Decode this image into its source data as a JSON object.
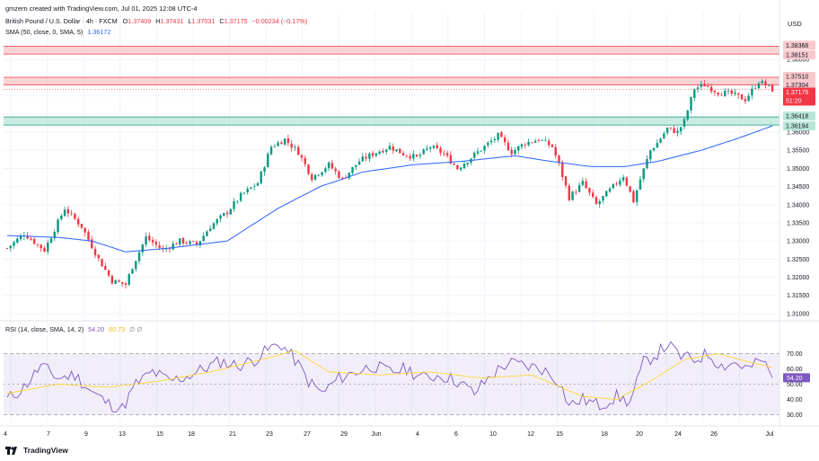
{
  "watermark": "gmzern created with TradingView.com, Jul 01, 2025 12:08 UTC-4",
  "legend_main": {
    "symbol": "British Pound / U.S. Dollar · 4h · FXCM",
    "o_label": "O",
    "o": "1.37409",
    "h_label": "H",
    "h": "1.37431",
    "l_label": "L",
    "l": "1.37031",
    "c_label": "C",
    "c": "1.37175",
    "change": "−0.00234 (−0.17%)"
  },
  "legend_sma": {
    "label": "SMA (50, close, 0, SMA, 5)",
    "value": "1.36172"
  },
  "legend_rsi": {
    "label": "RSI (14, close, SMA, 14, 2)",
    "value1": "54.20",
    "value2": "60.73",
    "extra": "∅ ∅"
  },
  "currency": "USD",
  "brand": "TradingView",
  "colors": {
    "up": "#089981",
    "down": "#f23645",
    "sma": "#2962ff",
    "rsi": "#7e57c2",
    "rsi_ma": "#fdd835",
    "grid": "#f0f3fa",
    "red_zone": "#f7c6ca",
    "green_zone": "#b9e6d9",
    "last_price_bg": "#f23645"
  },
  "price_axis": {
    "ticks": [
      "1.38000",
      "1.37500",
      "1.37000",
      "1.36500",
      "1.36000",
      "1.35500",
      "1.35000",
      "1.34500",
      "1.34000",
      "1.33500",
      "1.33000",
      "1.32500",
      "1.32000",
      "1.31500",
      "1.31000"
    ],
    "badges_red": [
      "1.38368",
      "1.38151",
      "1.37510",
      "1.37304"
    ],
    "last_price": "1.37175",
    "countdown": "51:20",
    "badges_green": [
      "1.36418",
      "1.36194"
    ]
  },
  "rsi_axis": {
    "ticks": [
      "70.00",
      "60.00",
      "50.00",
      "40.00",
      "30.00"
    ]
  },
  "time_axis": [
    "4",
    "7",
    "9",
    "13",
    "15",
    "18",
    "21",
    "23",
    "27",
    "29",
    "Jun",
    "4",
    "6",
    "10",
    "12",
    "15",
    "18",
    "20",
    "24",
    "26",
    "Jul"
  ],
  "chart_data": {
    "type": "candlestick",
    "symbol": "GBPUSD",
    "timeframe": "4h",
    "ylim": [
      1.3085,
      1.3855
    ],
    "zones": [
      {
        "type": "resistance",
        "from": 1.38151,
        "to": 1.38368
      },
      {
        "type": "resistance",
        "from": 1.37304,
        "to": 1.3751
      },
      {
        "type": "support",
        "from": 1.36194,
        "to": 1.36418
      }
    ],
    "close_path_points": [
      [
        0,
        1.328
      ],
      [
        10,
        1.332
      ],
      [
        22,
        1.3275
      ],
      [
        34,
        1.339
      ],
      [
        44,
        1.334
      ],
      [
        54,
        1.325
      ],
      [
        62,
        1.319
      ],
      [
        70,
        1.318
      ],
      [
        74,
        1.323
      ],
      [
        82,
        1.331
      ],
      [
        92,
        1.3275
      ],
      [
        102,
        1.33
      ],
      [
        112,
        1.329
      ],
      [
        120,
        1.334
      ],
      [
        130,
        1.338
      ],
      [
        138,
        1.3425
      ],
      [
        148,
        1.346
      ],
      [
        156,
        1.356
      ],
      [
        164,
        1.358
      ],
      [
        172,
        1.3545
      ],
      [
        180,
        1.3475
      ],
      [
        190,
        1.351
      ],
      [
        198,
        1.347
      ],
      [
        208,
        1.352
      ],
      [
        216,
        1.354
      ],
      [
        226,
        1.356
      ],
      [
        234,
        1.354
      ],
      [
        242,
        1.353
      ],
      [
        250,
        1.356
      ],
      [
        258,
        1.354
      ],
      [
        266,
        1.35
      ],
      [
        274,
        1.353
      ],
      [
        282,
        1.356
      ],
      [
        290,
        1.359
      ],
      [
        298,
        1.3545
      ],
      [
        306,
        1.357
      ],
      [
        314,
        1.358
      ],
      [
        322,
        1.356
      ],
      [
        326,
        1.351
      ],
      [
        332,
        1.342
      ],
      [
        340,
        1.346
      ],
      [
        348,
        1.34
      ],
      [
        356,
        1.344
      ],
      [
        364,
        1.348
      ],
      [
        370,
        1.341
      ],
      [
        374,
        1.347
      ],
      [
        380,
        1.355
      ],
      [
        384,
        1.357
      ],
      [
        390,
        1.361
      ],
      [
        396,
        1.36
      ],
      [
        400,
        1.363
      ],
      [
        406,
        1.372
      ],
      [
        412,
        1.373
      ],
      [
        420,
        1.371
      ],
      [
        428,
        1.3705
      ],
      [
        436,
        1.369
      ],
      [
        444,
        1.374
      ],
      [
        448,
        1.373
      ],
      [
        452,
        1.3717
      ]
    ],
    "sma50_points": [
      [
        0,
        1.3315
      ],
      [
        30,
        1.331
      ],
      [
        50,
        1.33
      ],
      [
        70,
        1.327
      ],
      [
        95,
        1.328
      ],
      [
        130,
        1.33
      ],
      [
        160,
        1.339
      ],
      [
        185,
        1.345
      ],
      [
        210,
        1.349
      ],
      [
        240,
        1.351
      ],
      [
        270,
        1.352
      ],
      [
        300,
        1.3535
      ],
      [
        320,
        1.352
      ],
      [
        345,
        1.3505
      ],
      [
        365,
        1.3505
      ],
      [
        385,
        1.352
      ],
      [
        410,
        1.355
      ],
      [
        430,
        1.358
      ],
      [
        452,
        1.3617
      ]
    ],
    "rsi": {
      "ylim": [
        25,
        85
      ],
      "bands": [
        30,
        50,
        70
      ],
      "last": 54.2,
      "ma_last": 60.73,
      "points": [
        [
          0,
          40
        ],
        [
          10,
          48
        ],
        [
          20,
          62
        ],
        [
          30,
          54
        ],
        [
          40,
          56
        ],
        [
          50,
          45
        ],
        [
          60,
          37
        ],
        [
          68,
          34
        ],
        [
          76,
          50
        ],
        [
          86,
          58
        ],
        [
          96,
          52
        ],
        [
          106,
          55
        ],
        [
          116,
          60
        ],
        [
          126,
          65
        ],
        [
          136,
          62
        ],
        [
          146,
          66
        ],
        [
          156,
          74
        ],
        [
          162,
          76
        ],
        [
          170,
          66
        ],
        [
          178,
          52
        ],
        [
          186,
          44
        ],
        [
          196,
          54
        ],
        [
          206,
          58
        ],
        [
          216,
          62
        ],
        [
          226,
          58
        ],
        [
          236,
          60
        ],
        [
          246,
          54
        ],
        [
          256,
          56
        ],
        [
          266,
          52
        ],
        [
          276,
          44
        ],
        [
          286,
          56
        ],
        [
          296,
          64
        ],
        [
          306,
          62
        ],
        [
          316,
          60
        ],
        [
          326,
          52
        ],
        [
          332,
          36
        ],
        [
          340,
          40
        ],
        [
          350,
          36
        ],
        [
          360,
          42
        ],
        [
          368,
          38
        ],
        [
          376,
          64
        ],
        [
          384,
          70
        ],
        [
          390,
          76
        ],
        [
          398,
          68
        ],
        [
          406,
          66
        ],
        [
          414,
          70
        ],
        [
          422,
          62
        ],
        [
          430,
          64
        ],
        [
          438,
          60
        ],
        [
          446,
          66
        ],
        [
          452,
          54
        ]
      ],
      "ma_points": [
        [
          0,
          44
        ],
        [
          30,
          50
        ],
        [
          60,
          48
        ],
        [
          90,
          52
        ],
        [
          120,
          58
        ],
        [
          150,
          66
        ],
        [
          170,
          72
        ],
        [
          190,
          58
        ],
        [
          220,
          56
        ],
        [
          250,
          58
        ],
        [
          280,
          54
        ],
        [
          310,
          56
        ],
        [
          340,
          42
        ],
        [
          360,
          40
        ],
        [
          380,
          52
        ],
        [
          400,
          66
        ],
        [
          420,
          70
        ],
        [
          440,
          64
        ],
        [
          452,
          61
        ]
      ]
    }
  }
}
